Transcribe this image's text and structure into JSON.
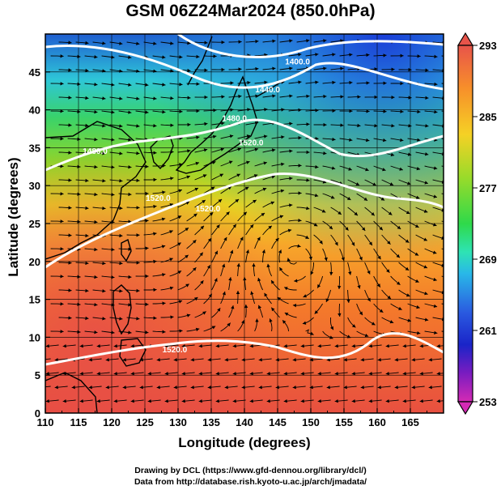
{
  "title": "GSM 06Z24Mar2024 (850.0hPa)",
  "xlabel": "Longitude (degrees)",
  "ylabel": "Latitude  (degrees)",
  "credits": {
    "line1": "Drawing by DCL (https://www.gfd-dennou.org/library/dcl/)",
    "line2": "Data from http://database.rish.kyoto-u.ac.jp/arch/jmadata/"
  },
  "map": {
    "lon_range": [
      110,
      170
    ],
    "lat_range": [
      0,
      50
    ],
    "lon_ticks": [
      "110",
      "115",
      "120",
      "125",
      "130",
      "135",
      "140",
      "145",
      "150",
      "155",
      "160",
      "165"
    ],
    "lat_ticks": [
      "0",
      "5",
      "10",
      "15",
      "20",
      "25",
      "30",
      "35",
      "40",
      "45"
    ],
    "grid": true,
    "field": "temperature (shaded)",
    "contour_color": "#ffffff",
    "streamline_color": "#000000"
  },
  "contours": [
    {
      "label": "1400.0",
      "lon": 148.0,
      "lat": 46.0
    },
    {
      "label": "1440.0",
      "lon": 143.5,
      "lat": 42.3
    },
    {
      "label": "1480.0",
      "lon": 138.5,
      "lat": 38.5
    },
    {
      "label": "1480.0",
      "lon": 117.5,
      "lat": 34.2
    },
    {
      "label": "1520.0",
      "lon": 141.0,
      "lat": 35.3
    },
    {
      "label": "1520.0",
      "lon": 127.0,
      "lat": 28.0
    },
    {
      "label": "1520.0",
      "lon": 134.5,
      "lat": 26.6
    },
    {
      "label": "1520.0",
      "lon": 129.5,
      "lat": 8.0
    }
  ],
  "colorbar": {
    "labels": [
      "293",
      "285",
      "277",
      "269",
      "261",
      "253"
    ],
    "colors": [
      "#e8544a",
      "#f78f2a",
      "#f5d125",
      "#9adb2a",
      "#2fd94a",
      "#2ee3b4",
      "#29b8e8",
      "#2a5ae0",
      "#1a24c8",
      "#7a1cc0",
      "#d42ab4"
    ]
  }
}
